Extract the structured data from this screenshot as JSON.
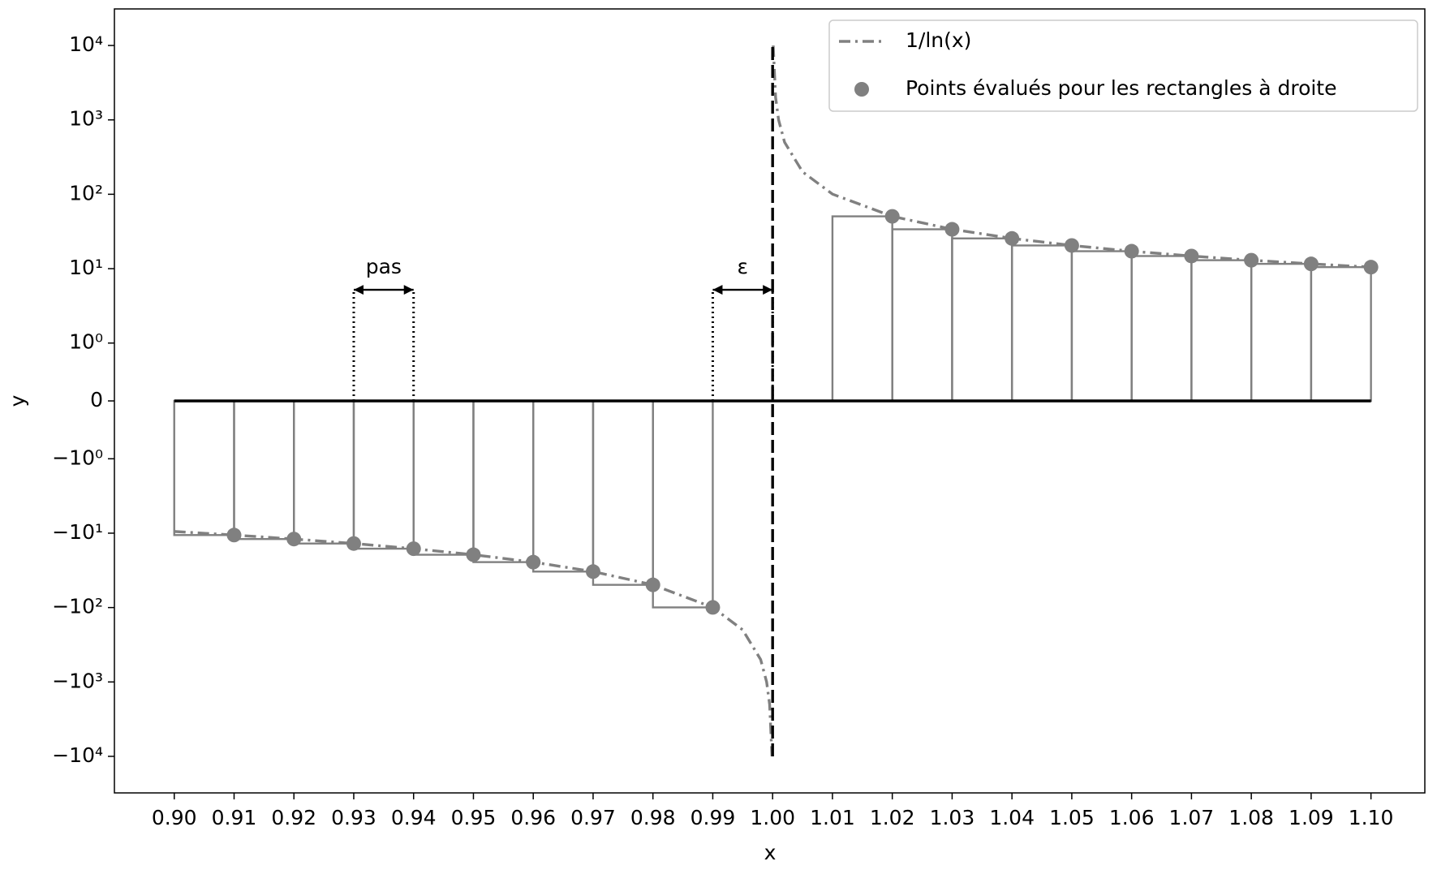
{
  "chart_data": {
    "type": "line",
    "xlabel": "x",
    "ylabel": "y",
    "xlim": [
      0.89,
      1.109
    ],
    "ylim": [
      -31000,
      31000
    ],
    "yscale": "symlog",
    "linthresh": 1,
    "linscale": 0.7,
    "xticks": [
      {
        "value": 0.9,
        "label": "0.90"
      },
      0.91,
      0.92,
      0.93,
      0.94,
      0.95,
      0.96,
      0.97,
      0.98,
      0.99,
      {
        "value": 1.0,
        "label": "1.00"
      },
      1.01,
      1.02,
      1.03,
      1.04,
      1.05,
      1.06,
      1.07,
      1.08,
      1.09,
      {
        "value": 1.1,
        "label": "1.10"
      }
    ],
    "yticks": [
      {
        "value": -10000,
        "label": "−10⁴"
      },
      {
        "value": -1000,
        "label": "−10³"
      },
      {
        "value": -100,
        "label": "−10²"
      },
      {
        "value": -10,
        "label": "−10¹"
      },
      {
        "value": -1,
        "label": "−10⁰"
      },
      0,
      {
        "value": 1,
        "label": "10⁰"
      },
      {
        "value": 10,
        "label": "10¹"
      },
      {
        "value": 100,
        "label": "10²"
      },
      {
        "value": 1000,
        "label": "10³"
      },
      {
        "value": 10000,
        "label": "10⁴"
      }
    ],
    "legend": "upper right",
    "series": [
      {
        "name": "1/ln(x)",
        "style": "dashdot",
        "color": "#808080",
        "x": [
          0.9,
          0.91,
          0.92,
          0.93,
          0.94,
          0.95,
          0.96,
          0.97,
          0.98,
          0.99,
          0.995,
          0.998,
          0.999,
          0.9995,
          0.9999,
          1.0,
          1.0001,
          1.0005,
          1.001,
          1.002,
          1.005,
          1.01,
          1.02,
          1.03,
          1.04,
          1.05,
          1.06,
          1.07,
          1.08,
          1.09,
          1.1
        ],
        "values": [
          -9.491,
          -10.603,
          -11.993,
          -13.78,
          -16.161,
          -19.496,
          -24.496,
          -32.83,
          -49.498,
          -99.499,
          -199.5,
          -499.5,
          -999.5,
          -1999.5,
          -9999.5,
          null,
          10000.5,
          2000.5,
          1000.5,
          500.5,
          200.5,
          100.5,
          50.5,
          33.83,
          25.5,
          20.5,
          17.16,
          14.78,
          12.99,
          11.6,
          10.49
        ]
      },
      {
        "name": "Points évalués pour les rectangles à droite",
        "style": "marker",
        "rectangles": true,
        "color": "#808080",
        "x": [
          0.91,
          0.92,
          0.93,
          0.94,
          0.95,
          0.96,
          0.97,
          0.98,
          0.99,
          1.02,
          1.03,
          1.04,
          1.05,
          1.06,
          1.07,
          1.08,
          1.09,
          1.1
        ],
        "values": [
          -10.603,
          -11.993,
          -13.78,
          -16.161,
          -19.496,
          -24.496,
          -32.83,
          -49.498,
          -99.499,
          50.5,
          33.83,
          25.5,
          20.5,
          17.16,
          14.78,
          12.99,
          11.6,
          10.49
        ]
      }
    ],
    "hline": {
      "y": 0,
      "x": [
        0.9,
        1.1
      ]
    },
    "vline": {
      "x": 1.0,
      "y": [
        -10000,
        10000
      ]
    },
    "annotations": [
      {
        "text": "pas",
        "x": [
          0.93,
          0.94
        ],
        "y": 5.2
      },
      {
        "text": "ε",
        "x": [
          0.99,
          1.0
        ],
        "y": 5.2
      }
    ]
  }
}
